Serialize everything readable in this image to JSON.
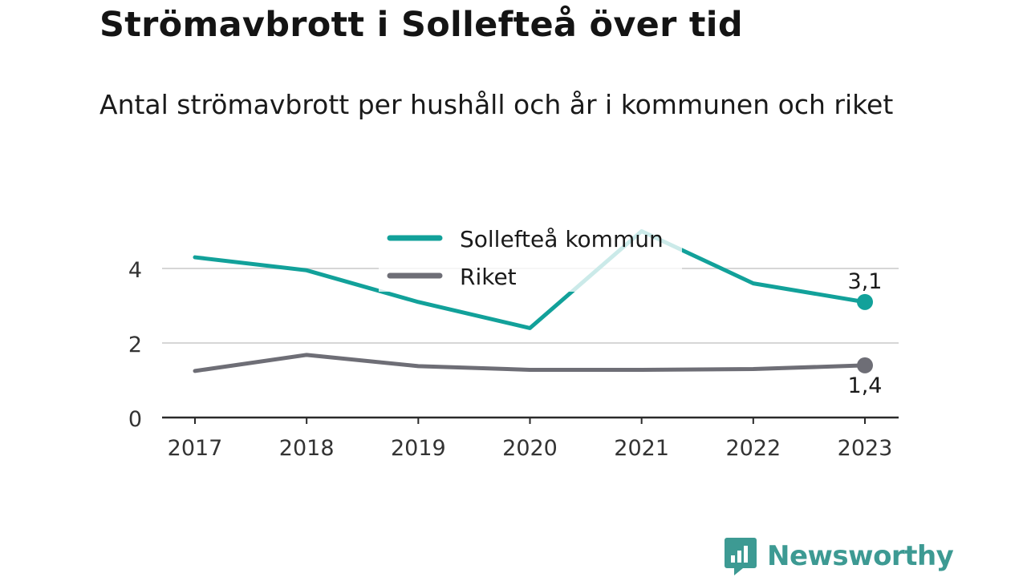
{
  "title": "Strömavbrott i Sollefteå över tid",
  "subtitle": "Antal strömavbrott per hushåll och år i kommunen och riket",
  "brand": {
    "name": "Newsworthy",
    "color": "#3d9a93",
    "icon": "newsworthy-logo-icon"
  },
  "chart_data": {
    "type": "line",
    "title": "Strömavbrott i Sollefteå över tid",
    "subtitle": "Antal strömavbrott per hushåll och år i kommunen och riket",
    "x": [
      "2017",
      "2018",
      "2019",
      "2020",
      "2021",
      "2022",
      "2023"
    ],
    "ylim": [
      0,
      5
    ],
    "yticks": [
      0,
      2,
      4
    ],
    "grid": true,
    "legend": "top-center",
    "series": [
      {
        "name": "Sollefteå kommun",
        "color": "#12a19a",
        "values": [
          4.3,
          3.95,
          3.1,
          2.4,
          5.0,
          3.6,
          3.1
        ],
        "end_label": "3,1",
        "end_label_position": "above"
      },
      {
        "name": "Riket",
        "color": "#6e6e76",
        "values": [
          1.25,
          1.68,
          1.38,
          1.28,
          1.28,
          1.3,
          1.4
        ],
        "end_label": "1,4",
        "end_label_position": "below"
      }
    ]
  }
}
